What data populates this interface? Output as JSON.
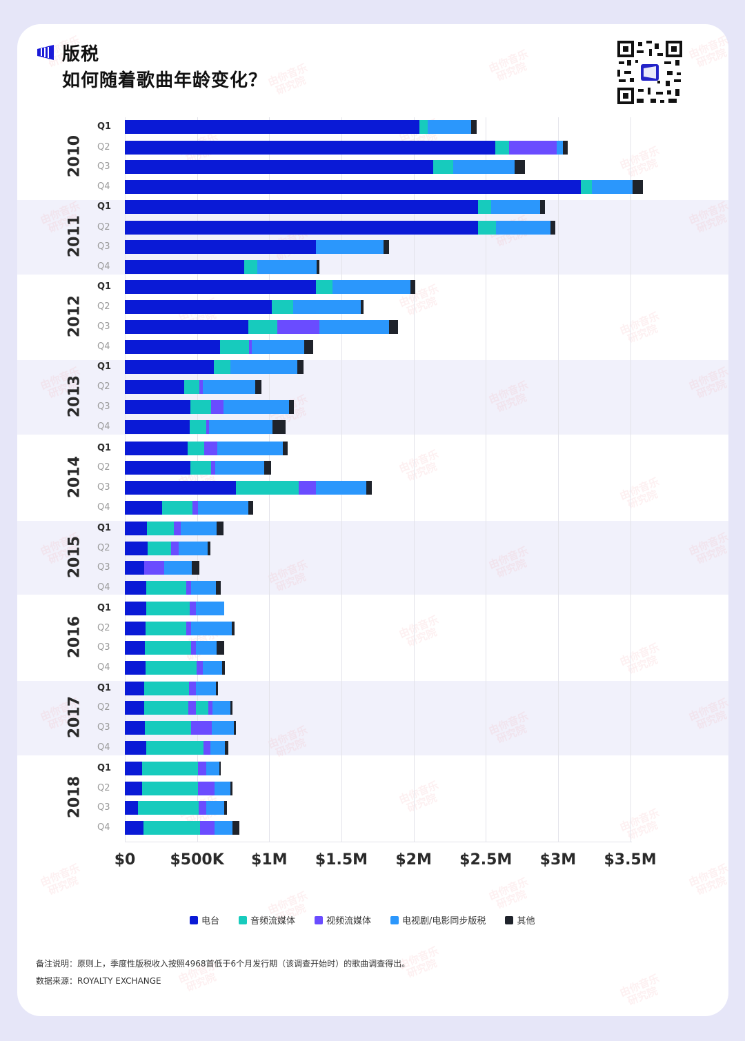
{
  "header": {
    "title_line1": "版税",
    "title_line2": "如何随着歌曲年龄变化？",
    "logo_icon": "bars-logo-icon",
    "qr_icon": "qr-code-icon"
  },
  "colors": {
    "radio": "#0a1ad6",
    "audio_streaming": "#17cbbd",
    "video_streaming": "#6a4cff",
    "sync": "#2b97fc",
    "other": "#1f232b",
    "band_tint": "#f1f1fb",
    "page_bg": "#e6e6f8"
  },
  "chart_data": {
    "type": "bar",
    "orientation": "horizontal",
    "stacked": true,
    "title": "版税 如何随着歌曲年龄变化？",
    "xlabel": "",
    "ylabel": "",
    "unit": "USD (thousands)",
    "xlim": [
      0,
      3500
    ],
    "xticks": [
      0,
      500,
      1000,
      1500,
      2000,
      2500,
      3000,
      3500
    ],
    "xtick_labels": [
      "$0",
      "$500K",
      "$1M",
      "$1.5M",
      "$2M",
      "$2.5M",
      "$3M",
      "$3.5M"
    ],
    "grid": true,
    "legend_position": "bottom",
    "series_keys": [
      "radio",
      "audio_streaming",
      "video_streaming",
      "sync",
      "other"
    ],
    "legend": [
      {
        "key": "radio",
        "label": "电台"
      },
      {
        "key": "audio_streaming",
        "label": "音频流媒体"
      },
      {
        "key": "video_streaming",
        "label": "视频流媒体"
      },
      {
        "key": "sync",
        "label": "电视剧/电影同步版税"
      },
      {
        "key": "other",
        "label": "其他"
      }
    ],
    "groups": [
      {
        "year": "2010",
        "quarters": [
          {
            "q": "Q1",
            "segments": [
              [
                "radio",
                2040
              ],
              [
                "audio_streaming",
                57
              ],
              [
                "sync",
                301
              ],
              [
                "other",
                38
              ]
            ]
          },
          {
            "q": "Q2",
            "segments": [
              [
                "radio",
                2566
              ],
              [
                "audio_streaming",
                96
              ],
              [
                "video_streaming",
                330
              ],
              [
                "sync",
                43
              ],
              [
                "other",
                33
              ]
            ]
          },
          {
            "q": "Q3",
            "segments": [
              [
                "radio",
                2136
              ],
              [
                "audio_streaming",
                139
              ],
              [
                "sync",
                425
              ],
              [
                "other",
                72
              ]
            ]
          },
          {
            "q": "Q4",
            "segments": [
              [
                "radio",
                3158
              ],
              [
                "audio_streaming",
                76
              ],
              [
                "sync",
                282
              ],
              [
                "other",
                72
              ]
            ]
          }
        ]
      },
      {
        "year": "2011",
        "quarters": [
          {
            "q": "Q1",
            "segments": [
              [
                "radio",
                2446
              ],
              [
                "audio_streaming",
                91
              ],
              [
                "sync",
                339
              ],
              [
                "other",
                33
              ]
            ]
          },
          {
            "q": "Q2",
            "segments": [
              [
                "radio",
                2446
              ],
              [
                "audio_streaming",
                124
              ],
              [
                "sync",
                377
              ],
              [
                "other",
                33
              ]
            ]
          },
          {
            "q": "Q3",
            "segments": [
              [
                "radio",
                1323
              ],
              [
                "sync",
                468
              ],
              [
                "other",
                38
              ]
            ]
          },
          {
            "q": "Q4",
            "segments": [
              [
                "radio",
                827
              ],
              [
                "audio_streaming",
                91
              ],
              [
                "sync",
                411
              ],
              [
                "other",
                19
              ]
            ]
          }
        ]
      },
      {
        "year": "2012",
        "quarters": [
          {
            "q": "Q1",
            "segments": [
              [
                "radio",
                1323
              ],
              [
                "audio_streaming",
                115
              ],
              [
                "sync",
                540
              ],
              [
                "other",
                33
              ]
            ]
          },
          {
            "q": "Q2",
            "segments": [
              [
                "radio",
                1018
              ],
              [
                "audio_streaming",
                148
              ],
              [
                "sync",
                468
              ],
              [
                "other",
                19
              ]
            ]
          },
          {
            "q": "Q3",
            "segments": [
              [
                "radio",
                855
              ],
              [
                "audio_streaming",
                201
              ],
              [
                "video_streaming",
                291
              ],
              [
                "sync",
                483
              ],
              [
                "other",
                62
              ]
            ]
          },
          {
            "q": "Q4",
            "segments": [
              [
                "radio",
                659
              ],
              [
                "audio_streaming",
                201
              ],
              [
                "video_streaming",
                19
              ],
              [
                "sync",
                363
              ],
              [
                "other",
                62
              ]
            ]
          }
        ]
      },
      {
        "year": "2013",
        "quarters": [
          {
            "q": "Q1",
            "segments": [
              [
                "radio",
                616
              ],
              [
                "audio_streaming",
                115
              ],
              [
                "sync",
                463
              ],
              [
                "other",
                43
              ]
            ]
          },
          {
            "q": "Q2",
            "segments": [
              [
                "radio",
                411
              ],
              [
                "audio_streaming",
                105
              ],
              [
                "video_streaming",
                24
              ],
              [
                "sync",
                363
              ],
              [
                "other",
                43
              ]
            ]
          },
          {
            "q": "Q3",
            "segments": [
              [
                "radio",
                454
              ],
              [
                "audio_streaming",
                143
              ],
              [
                "video_streaming",
                86
              ],
              [
                "sync",
                454
              ],
              [
                "other",
                33
              ]
            ]
          },
          {
            "q": "Q4",
            "segments": [
              [
                "radio",
                449
              ],
              [
                "audio_streaming",
                115
              ],
              [
                "video_streaming",
                19
              ],
              [
                "sync",
                440
              ],
              [
                "other",
                91
              ]
            ]
          }
        ]
      },
      {
        "year": "2014",
        "quarters": [
          {
            "q": "Q1",
            "segments": [
              [
                "radio",
                435
              ],
              [
                "audio_streaming",
                115
              ],
              [
                "video_streaming",
                91
              ],
              [
                "sync",
                454
              ],
              [
                "other",
                33
              ]
            ]
          },
          {
            "q": "Q2",
            "segments": [
              [
                "radio",
                454
              ],
              [
                "audio_streaming",
                143
              ],
              [
                "video_streaming",
                29
              ],
              [
                "sync",
                339
              ],
              [
                "other",
                48
              ]
            ]
          },
          {
            "q": "Q3",
            "segments": [
              [
                "radio",
                769
              ],
              [
                "audio_streaming",
                435
              ],
              [
                "video_streaming",
                119
              ],
              [
                "sync",
                349
              ],
              [
                "other",
                38
              ]
            ]
          },
          {
            "q": "Q4",
            "segments": [
              [
                "radio",
                258
              ],
              [
                "audio_streaming",
                210
              ],
              [
                "video_streaming",
                38
              ],
              [
                "sync",
                349
              ],
              [
                "other",
                33
              ]
            ]
          }
        ]
      },
      {
        "year": "2015",
        "quarters": [
          {
            "q": "Q1",
            "segments": [
              [
                "radio",
                153
              ],
              [
                "audio_streaming",
                186
              ],
              [
                "video_streaming",
                48
              ],
              [
                "sync",
                248
              ],
              [
                "other",
                48
              ]
            ]
          },
          {
            "q": "Q2",
            "segments": [
              [
                "radio",
                158
              ],
              [
                "audio_streaming",
                162
              ],
              [
                "video_streaming",
                53
              ],
              [
                "sync",
                201
              ],
              [
                "other",
                19
              ]
            ]
          },
          {
            "q": "Q3",
            "segments": [
              [
                "radio",
                134
              ],
              [
                "video_streaming",
                139
              ],
              [
                "sync",
                191
              ],
              [
                "other",
                53
              ]
            ]
          },
          {
            "q": "Q4",
            "segments": [
              [
                "radio",
                148
              ],
              [
                "audio_streaming",
                277
              ],
              [
                "video_streaming",
                33
              ],
              [
                "sync",
                172
              ],
              [
                "other",
                33
              ]
            ]
          }
        ]
      },
      {
        "year": "2016",
        "quarters": [
          {
            "q": "Q1",
            "segments": [
              [
                "radio",
                148
              ],
              [
                "audio_streaming",
                301
              ],
              [
                "video_streaming",
                43
              ],
              [
                "sync",
                196
              ]
            ]
          },
          {
            "q": "Q2",
            "segments": [
              [
                "radio",
                143
              ],
              [
                "audio_streaming",
                282
              ],
              [
                "video_streaming",
                33
              ],
              [
                "sync",
                282
              ],
              [
                "other",
                19
              ]
            ]
          },
          {
            "q": "Q3",
            "segments": [
              [
                "radio",
                139
              ],
              [
                "audio_streaming",
                320
              ],
              [
                "video_streaming",
                33
              ],
              [
                "sync",
                143
              ],
              [
                "other",
                53
              ]
            ]
          },
          {
            "q": "Q4",
            "segments": [
              [
                "radio",
                143
              ],
              [
                "audio_streaming",
                354
              ],
              [
                "video_streaming",
                43
              ],
              [
                "sync",
                134
              ],
              [
                "other",
                19
              ]
            ]
          }
        ]
      },
      {
        "year": "2017",
        "quarters": [
          {
            "q": "Q1",
            "segments": [
              [
                "radio",
                134
              ],
              [
                "audio_streaming",
                311
              ],
              [
                "video_streaming",
                48
              ],
              [
                "sync",
                139
              ],
              [
                "other",
                14
              ]
            ]
          },
          {
            "q": "Q2",
            "segments": [
              [
                "radio",
                134
              ],
              [
                "audio_streaming",
                306
              ],
              [
                "video_streaming",
                53
              ],
              [
                "audio_streaming",
                86
              ],
              [
                "video_streaming",
                29
              ],
              [
                "sync",
                124
              ],
              [
                "other",
                14
              ]
            ]
          },
          {
            "q": "Q3",
            "segments": [
              [
                "radio",
                139
              ],
              [
                "audio_streaming",
                320
              ],
              [
                "video_streaming",
                143
              ],
              [
                "sync",
                153
              ],
              [
                "other",
                14
              ]
            ]
          },
          {
            "q": "Q4",
            "segments": [
              [
                "radio",
                148
              ],
              [
                "audio_streaming",
                397
              ],
              [
                "video_streaming",
                48
              ],
              [
                "sync",
                100
              ],
              [
                "other",
                24
              ]
            ]
          }
        ]
      },
      {
        "year": "2018",
        "quarters": [
          {
            "q": "Q1",
            "segments": [
              [
                "radio",
                119
              ],
              [
                "audio_streaming",
                387
              ],
              [
                "video_streaming",
                57
              ],
              [
                "sync",
                91
              ],
              [
                "other",
                10
              ]
            ]
          },
          {
            "q": "Q2",
            "segments": [
              [
                "radio",
                119
              ],
              [
                "audio_streaming",
                387
              ],
              [
                "video_streaming",
                115
              ],
              [
                "sync",
                110
              ],
              [
                "other",
                14
              ]
            ]
          },
          {
            "q": "Q3",
            "segments": [
              [
                "radio",
                91
              ],
              [
                "audio_streaming",
                420
              ],
              [
                "video_streaming",
                53
              ],
              [
                "sync",
                124
              ],
              [
                "other",
                19
              ]
            ]
          },
          {
            "q": "Q4",
            "segments": [
              [
                "radio",
                129
              ],
              [
                "audio_streaming",
                392
              ],
              [
                "video_streaming",
                100
              ],
              [
                "sync",
                124
              ],
              [
                "other",
                48
              ]
            ]
          }
        ]
      }
    ]
  },
  "footer": {
    "note": "备注说明：原则上，季度性版税收入按照4968首低于6个月发行期（该调查开始时）的歌曲调查得出。",
    "source": "数据来源：ROYALTY EXCHANGE"
  },
  "watermark": {
    "line1": "由你音乐",
    "line2": "研究院"
  }
}
